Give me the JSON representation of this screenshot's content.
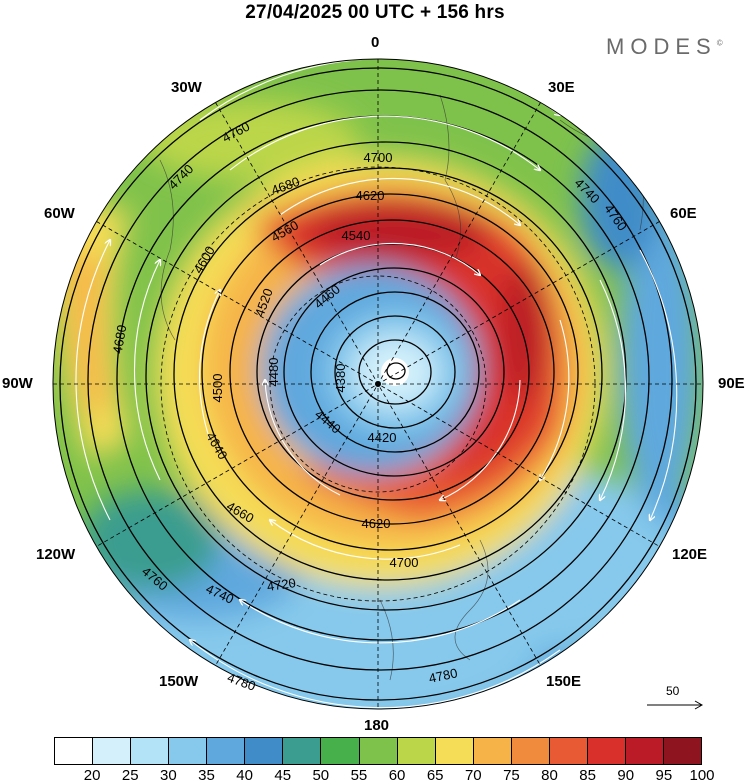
{
  "title": "27/04/2025  00 UTC  + 156 hrs",
  "brand": "MODES",
  "brand_mark": "©",
  "longitude_labels": {
    "lon_0": "0",
    "lon_30e": "30E",
    "lon_60e": "60E",
    "lon_90e": "90E",
    "lon_120e": "120E",
    "lon_150e": "150E",
    "lon_180": "180",
    "lon_150w": "150W",
    "lon_120w": "120W",
    "lon_90w": "90W",
    "lon_60w": "60W",
    "lon_30w": "30W"
  },
  "vector_scale_label": "50",
  "contour_labels": [
    "4760",
    "4740",
    "4700",
    "4680",
    "4620",
    "4560",
    "4600",
    "4540",
    "4520",
    "4460",
    "4380",
    "4480",
    "4500",
    "4420",
    "4440",
    "4620",
    "4640",
    "4660",
    "4680",
    "4700",
    "4720",
    "4740",
    "4760",
    "4780",
    "4780",
    "4740",
    "4760"
  ],
  "colorbar": {
    "colors": [
      "#ffffff",
      "#d3f0fb",
      "#b2e3f7",
      "#86c9ec",
      "#5fa8de",
      "#3f8cc8",
      "#3a9d8f",
      "#47b04b",
      "#7fc24b",
      "#bcd64a",
      "#f5dd57",
      "#f6b448",
      "#f08a3d",
      "#e85a33",
      "#d9302c",
      "#bb1b27",
      "#8e1420"
    ],
    "ticks": [
      "20",
      "25",
      "30",
      "35",
      "40",
      "45",
      "50",
      "55",
      "60",
      "65",
      "70",
      "75",
      "80",
      "85",
      "90",
      "95",
      "100"
    ]
  }
}
